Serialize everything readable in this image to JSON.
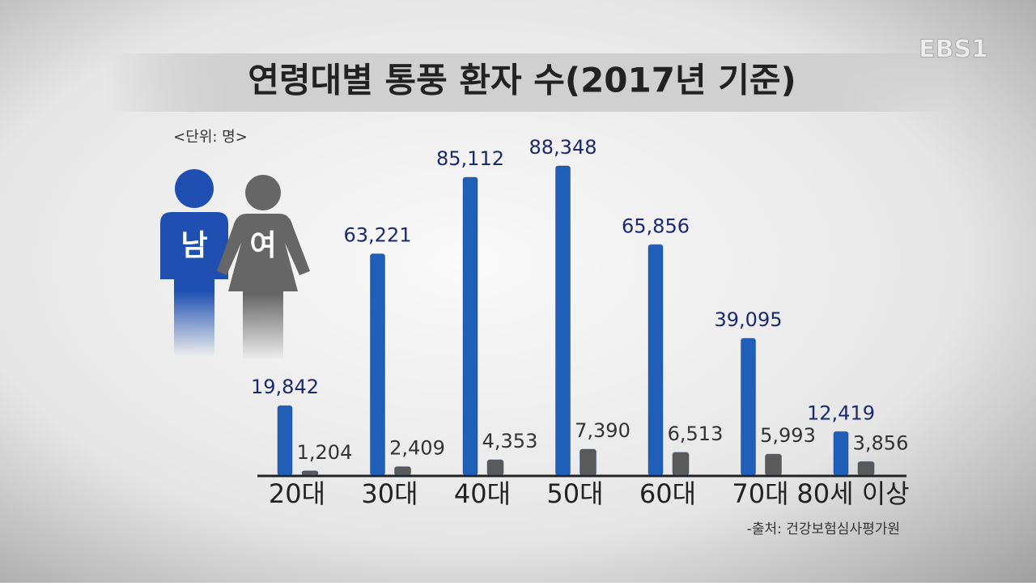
{
  "chart_data": {
    "type": "bar",
    "title": "연령대별 통풍 환자 수(2017년 기준)",
    "unit_note": "<단위: 명>",
    "source": "-출처: 건강보험심사평가원",
    "logo": "EBS1",
    "categories": [
      "20대",
      "30대",
      "40대",
      "50대",
      "60대",
      "70대",
      "80세 이상"
    ],
    "series": [
      {
        "name": "남",
        "color": "#1f5fb8",
        "values": [
          19842,
          63221,
          85112,
          88348,
          65856,
          39095,
          12419
        ],
        "value_labels": [
          "19,842",
          "63,221",
          "85,112",
          "88,348",
          "65,856",
          "39,095",
          "12,419"
        ]
      },
      {
        "name": "여",
        "color": "#5a5a5a",
        "values": [
          1204,
          2409,
          4353,
          7390,
          6513,
          5993,
          3856
        ],
        "value_labels": [
          "1,204",
          "2,409",
          "4,353",
          "7,390",
          "6,513",
          "5,993",
          "3,856"
        ]
      }
    ]
  }
}
